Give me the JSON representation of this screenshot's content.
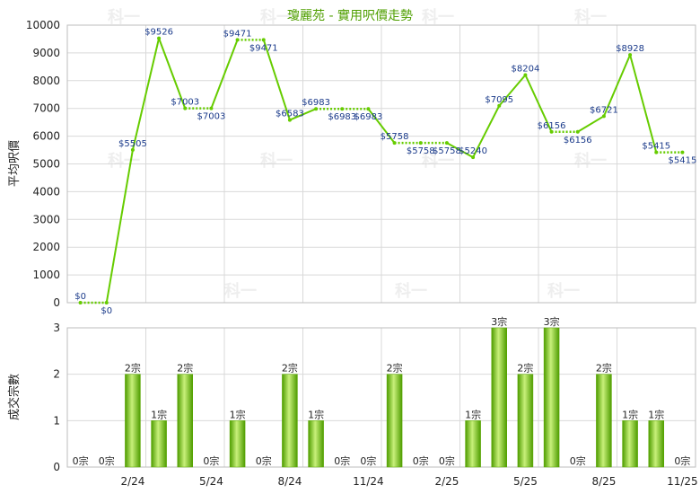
{
  "title": "瓊麗苑 - 實用呎價走勢",
  "watermark": "科一",
  "chart_data": [
    {
      "type": "line",
      "ylabel": "平均呎價",
      "ylim": [
        0,
        10000
      ],
      "yticks": [
        0,
        1000,
        2000,
        3000,
        4000,
        5000,
        6000,
        7000,
        8000,
        9000,
        10000
      ],
      "ytick_labels": [
        "0",
        "1000",
        "2000",
        "3000",
        "4000",
        "5000",
        "6000",
        "7000",
        "8000",
        "9000",
        "10000"
      ],
      "xtick_labels": [
        "2/24",
        "5/24",
        "8/24",
        "11/24",
        "2/25",
        "5/25",
        "8/25",
        "11/25"
      ],
      "grid": true,
      "color": "#66cc00",
      "points": [
        {
          "value": 0,
          "label": "$0",
          "carry": false
        },
        {
          "value": 0,
          "label": "$0",
          "carry": true
        },
        {
          "value": 5505,
          "label": "$5505",
          "carry": false
        },
        {
          "value": 9526,
          "label": "$9526",
          "carry": false
        },
        {
          "value": 7003,
          "label": "$7003",
          "carry": false
        },
        {
          "value": 7003,
          "label": "$7003",
          "carry": true
        },
        {
          "value": 9471,
          "label": "$9471",
          "carry": false
        },
        {
          "value": 9471,
          "label": "$9471",
          "carry": true
        },
        {
          "value": 6583,
          "label": "$6583",
          "carry": false
        },
        {
          "value": 6983,
          "label": "$6983",
          "carry": false
        },
        {
          "value": 6983,
          "label": "$6983",
          "carry": true
        },
        {
          "value": 6983,
          "label": "$6983",
          "carry": true
        },
        {
          "value": 5758,
          "label": "$5758",
          "carry": false
        },
        {
          "value": 5758,
          "label": "$5758",
          "carry": true
        },
        {
          "value": 5758,
          "label": "$5758",
          "carry": true
        },
        {
          "value": 5240,
          "label": "$5240",
          "carry": false
        },
        {
          "value": 7095,
          "label": "$7095",
          "carry": false
        },
        {
          "value": 8204,
          "label": "$8204",
          "carry": false
        },
        {
          "value": 6156,
          "label": "$6156",
          "carry": false
        },
        {
          "value": 6156,
          "label": "$6156",
          "carry": true
        },
        {
          "value": 6721,
          "label": "$6721",
          "carry": false
        },
        {
          "value": 8928,
          "label": "$8928",
          "carry": false
        },
        {
          "value": 5415,
          "label": "$5415",
          "carry": false
        },
        {
          "value": 5415,
          "label": "$5415",
          "carry": true
        }
      ]
    },
    {
      "type": "bar",
      "ylabel": "成交宗數",
      "ylim": [
        0,
        3
      ],
      "yticks": [
        0,
        1,
        2,
        3
      ],
      "ytick_labels": [
        "0",
        "1",
        "2",
        "3"
      ],
      "xtick_labels": [
        "2/24",
        "5/24",
        "8/24",
        "11/24",
        "2/25",
        "5/25",
        "8/25",
        "11/25"
      ],
      "grid": true,
      "color": "#66cc00",
      "values": [
        0,
        0,
        2,
        1,
        2,
        0,
        1,
        0,
        2,
        1,
        0,
        0,
        2,
        0,
        0,
        1,
        3,
        2,
        3,
        0,
        2,
        1,
        1,
        0
      ],
      "value_labels": [
        "0宗",
        "0宗",
        "2宗",
        "1宗",
        "2宗",
        "0宗",
        "1宗",
        "0宗",
        "2宗",
        "1宗",
        "0宗",
        "0宗",
        "2宗",
        "0宗",
        "0宗",
        "1宗",
        "3宗",
        "2宗",
        "3宗",
        "0宗",
        "2宗",
        "1宗",
        "1宗",
        "0宗"
      ]
    }
  ]
}
